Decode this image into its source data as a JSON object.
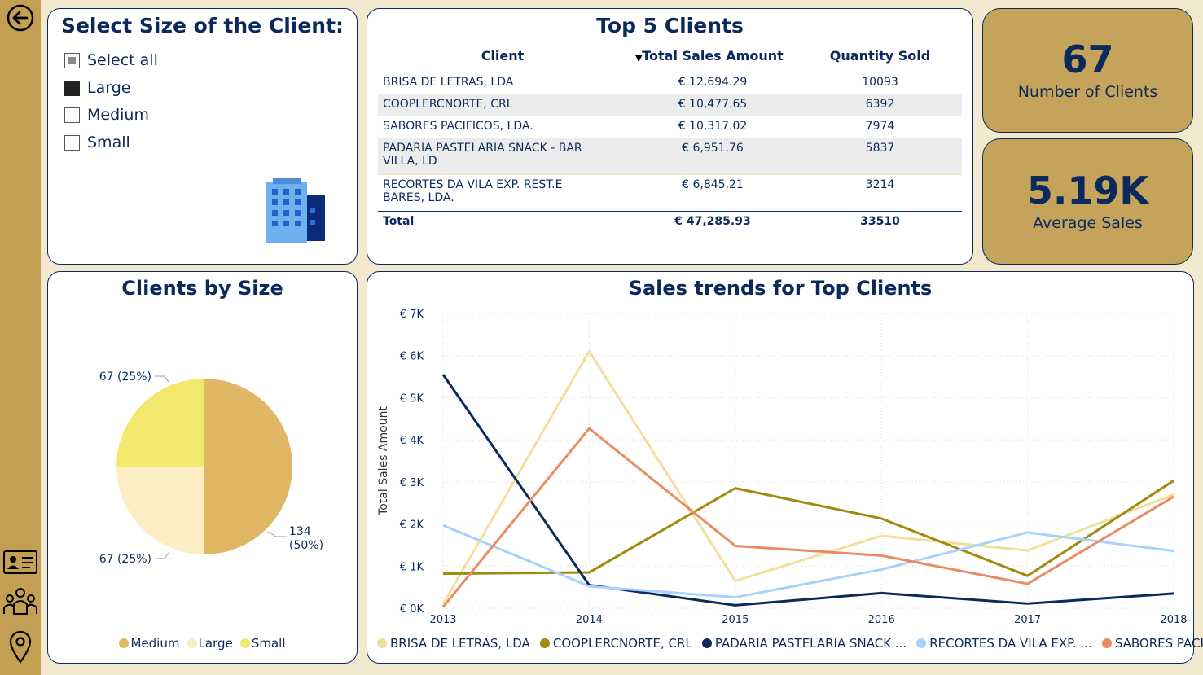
{
  "slicer": {
    "title": "Select Size of the Client:",
    "items": [
      {
        "label": "Select all",
        "state": "partial"
      },
      {
        "label": "Large",
        "state": "checked"
      },
      {
        "label": "Medium",
        "state": "unchecked"
      },
      {
        "label": "Small",
        "state": "unchecked"
      }
    ],
    "icon": "office-building-icon"
  },
  "top5": {
    "title": "Top 5 Clients",
    "columns": [
      "Client",
      "Total Sales Amount",
      "Quantity Sold"
    ],
    "sort_indicator": "▼",
    "rows": [
      {
        "client": "BRISA DE LETRAS, LDA",
        "sales": "€ 12,694.29",
        "qty": "10093"
      },
      {
        "client": "COOPLERCNORTE, CRL",
        "sales": "€ 10,477.65",
        "qty": "6392"
      },
      {
        "client": "SABORES PACIFICOS, LDA.",
        "sales": "€ 10,317.02",
        "qty": "7974"
      },
      {
        "client": "PADARIA PASTELARIA SNACK - BAR VILLA, LD",
        "sales": "€ 6,951.76",
        "qty": "5837"
      },
      {
        "client": "RECORTES DA VILA EXP. REST.E BARES, LDA.",
        "sales": "€ 6,845.21",
        "qty": "3214"
      }
    ],
    "total": {
      "label": "Total",
      "sales": "€ 47,285.93",
      "qty": "33510"
    }
  },
  "kpis": {
    "clients": {
      "value": "67",
      "label": "Number of Clients"
    },
    "avg": {
      "value": "5.19K",
      "label": "Average Sales"
    }
  },
  "pie": {
    "title": "Clients by Size",
    "slice_labels": {
      "medium": "134",
      "medium_pct": "(50%)",
      "large": "67 (25%)",
      "small": "67 (25%)"
    },
    "legend": [
      "Medium",
      "Large",
      "Small"
    ]
  },
  "line": {
    "title": "Sales trends for Top Clients",
    "ylabel": "Total Sales Amount",
    "legend": [
      "BRISA DE LETRAS, LDA",
      "COOPLERCNORTE, CRL",
      "PADARIA PASTELARIA SNACK ...",
      "RECORTES DA VILA EXP. ...",
      "SABORES PACIFIC..."
    ]
  },
  "colors": {
    "navy": "#0b2a5b",
    "gold": "#c5a35a",
    "medium": "#e0b865",
    "large": "#fbeec4",
    "small": "#f2e86e",
    "brisa": "#f2df9d",
    "coopler": "#a08a10",
    "padaria": "#0b2a5b",
    "recortes": "#a7d2fb",
    "sabores": "#ea8b63"
  },
  "chart_data": [
    {
      "type": "pie",
      "title": "Clients by Size",
      "categories": [
        "Medium",
        "Large",
        "Small"
      ],
      "values": [
        134,
        67,
        67
      ],
      "labels": [
        "134 (50%)",
        "67 (25%)",
        "67 (25%)"
      ],
      "legend_position": "bottom"
    },
    {
      "type": "line",
      "title": "Sales trends for Top Clients",
      "xlabel": "",
      "ylabel": "Total Sales Amount",
      "x": [
        2013,
        2014,
        2015,
        2016,
        2017,
        2018
      ],
      "ylim": [
        0,
        7000
      ],
      "yticks": [
        "€ 0K",
        "€ 1K",
        "€ 2K",
        "€ 3K",
        "€ 4K",
        "€ 5K",
        "€ 6K",
        "€ 7K"
      ],
      "grid": true,
      "legend_position": "bottom",
      "series": [
        {
          "name": "BRISA DE LETRAS, LDA",
          "values": [
            100,
            6100,
            650,
            1720,
            1370,
            2700
          ]
        },
        {
          "name": "COOPLERCNORTE, CRL",
          "values": [
            820,
            850,
            2850,
            2130,
            770,
            3030
          ]
        },
        {
          "name": "PADARIA PASTELARIA SNACK ...",
          "values": [
            5550,
            550,
            70,
            360,
            110,
            350
          ]
        },
        {
          "name": "RECORTES DA VILA EXP. ...",
          "values": [
            1970,
            520,
            260,
            920,
            1800,
            1360
          ]
        },
        {
          "name": "SABORES PACIFIC...",
          "values": [
            30,
            4270,
            1480,
            1250,
            580,
            2650
          ]
        }
      ]
    }
  ]
}
